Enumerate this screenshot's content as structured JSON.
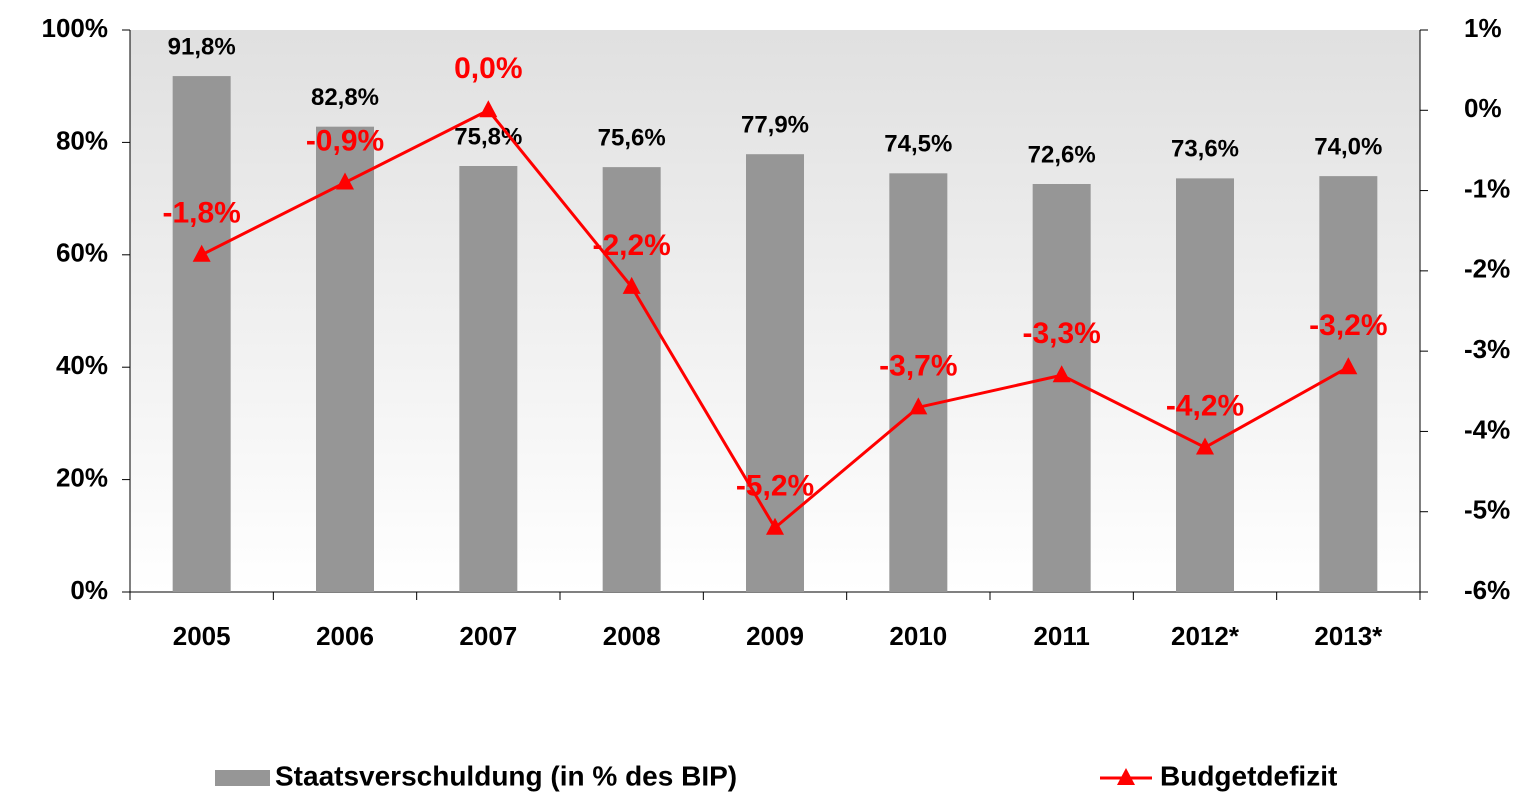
{
  "chart_data": {
    "type": "bar",
    "categories": [
      "2005",
      "2006",
      "2007",
      "2008",
      "2009",
      "2010",
      "2011",
      "2012*",
      "2013*"
    ],
    "series": [
      {
        "name": "Staatsverschuldung (in % des BIP)",
        "type": "bar",
        "color": "#969696",
        "values": [
          91.8,
          82.8,
          75.8,
          75.6,
          77.9,
          74.5,
          72.6,
          73.6,
          74.0
        ],
        "value_labels": [
          "91,8%",
          "82,8%",
          "75,8%",
          "75,6%",
          "77,9%",
          "74,5%",
          "72,6%",
          "73,6%",
          "74,0%"
        ]
      },
      {
        "name": "Budgetdefizit",
        "type": "line",
        "axis": "y2",
        "color": "#ff0000",
        "values": [
          -1.8,
          -0.9,
          0.0,
          -2.2,
          -5.2,
          -3.7,
          -3.3,
          -4.2,
          -3.2
        ],
        "value_labels": [
          "-1,8%",
          "-0,9%",
          "0,0%",
          "-2,2%",
          "-5,2%",
          "-3,7%",
          "-3,3%",
          "-4,2%",
          "-3,2%"
        ]
      }
    ],
    "ylim": [
      0,
      100
    ],
    "yticks": [
      {
        "value": 0,
        "label": "0%"
      },
      {
        "value": 20,
        "label": "20%"
      },
      {
        "value": 40,
        "label": "40%"
      },
      {
        "value": 60,
        "label": "60%"
      },
      {
        "value": 80,
        "label": "80%"
      },
      {
        "value": 100,
        "label": "100%"
      }
    ],
    "y2lim": [
      -6,
      1
    ],
    "y2ticks": [
      {
        "value": -6,
        "label": "-6%"
      },
      {
        "value": -5,
        "label": "-5%"
      },
      {
        "value": -4,
        "label": "-4%"
      },
      {
        "value": -3,
        "label": "-3%"
      },
      {
        "value": -2,
        "label": "-2%"
      },
      {
        "value": -1,
        "label": "-1%"
      },
      {
        "value": 0,
        "label": "0%"
      },
      {
        "value": 1,
        "label": "1%"
      }
    ],
    "legend": "bottom"
  }
}
